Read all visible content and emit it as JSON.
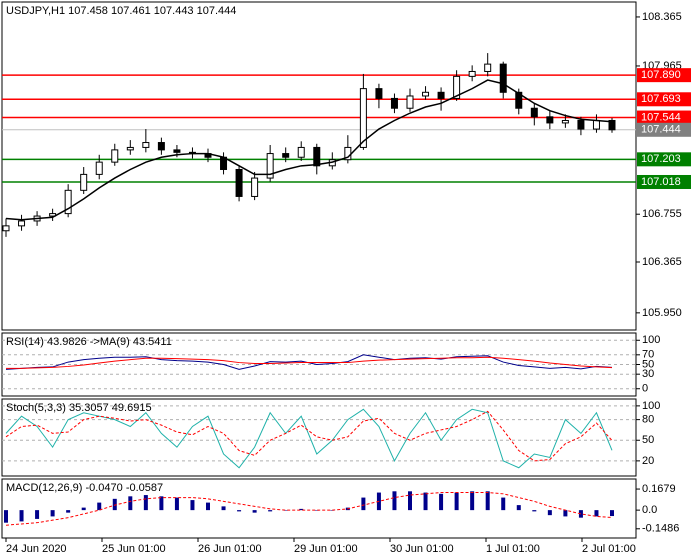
{
  "chart_data": [
    {
      "type": "candlestick",
      "title": "USDJPY,H1  107.458 107.461 107.443 107.444",
      "open": [
        106.62,
        106.66,
        106.7,
        106.74,
        106.76,
        106.95,
        107.08,
        107.18,
        107.28,
        107.3,
        107.34,
        107.28,
        107.26,
        107.25,
        107.22,
        107.12,
        106.9,
        107.05,
        107.25,
        107.22,
        107.3,
        107.15,
        107.2,
        107.3,
        107.78,
        107.7,
        107.62,
        107.72,
        107.75,
        107.7,
        107.88,
        107.92,
        107.98,
        107.75,
        107.62,
        107.55,
        107.5,
        107.52,
        107.45,
        107.52
      ],
      "high": [
        106.72,
        106.75,
        106.78,
        106.8,
        107.0,
        107.14,
        107.24,
        107.33,
        107.36,
        107.45,
        107.38,
        107.32,
        107.3,
        107.29,
        107.26,
        107.15,
        107.1,
        107.32,
        107.3,
        107.35,
        107.33,
        107.26,
        107.4,
        107.9,
        107.82,
        107.74,
        107.78,
        107.8,
        107.79,
        107.93,
        107.97,
        108.07,
        108.0,
        107.78,
        107.66,
        107.6,
        107.57,
        107.55,
        107.57,
        107.54
      ],
      "low": [
        106.57,
        106.62,
        106.66,
        106.7,
        106.73,
        106.92,
        107.04,
        107.15,
        107.24,
        107.26,
        107.24,
        107.22,
        107.21,
        107.18,
        107.08,
        106.86,
        106.87,
        107.02,
        107.18,
        107.19,
        107.08,
        107.12,
        107.17,
        107.28,
        107.62,
        107.58,
        107.59,
        107.69,
        107.6,
        107.68,
        107.84,
        107.88,
        107.7,
        107.57,
        107.48,
        107.45,
        107.46,
        107.4,
        107.42,
        107.42
      ],
      "close": [
        106.66,
        106.7,
        106.74,
        106.76,
        106.95,
        107.08,
        107.18,
        107.28,
        107.3,
        107.34,
        107.28,
        107.26,
        107.25,
        107.22,
        107.12,
        106.9,
        107.05,
        107.25,
        107.22,
        107.3,
        107.15,
        107.2,
        107.3,
        107.78,
        107.7,
        107.62,
        107.72,
        107.75,
        107.7,
        107.88,
        107.92,
        107.98,
        107.75,
        107.62,
        107.55,
        107.5,
        107.52,
        107.45,
        107.52,
        107.444
      ],
      "up_color": "#ffffff",
      "down_color": "#000000",
      "ma": {
        "color": "#000000",
        "values": [
          106.72,
          106.71,
          106.72,
          106.73,
          106.8,
          106.88,
          106.97,
          107.05,
          107.12,
          107.18,
          107.22,
          107.24,
          107.25,
          107.25,
          107.22,
          107.15,
          107.08,
          107.08,
          107.12,
          107.15,
          107.16,
          107.18,
          107.22,
          107.35,
          107.45,
          107.52,
          107.58,
          107.63,
          107.66,
          107.72,
          107.78,
          107.85,
          107.82,
          107.74,
          107.66,
          107.6,
          107.56,
          107.53,
          107.52,
          107.51
        ]
      },
      "levels": [
        {
          "value": 107.89,
          "label": "107.890",
          "color": "#ff0000"
        },
        {
          "value": 107.693,
          "label": "107.693",
          "color": "#ff0000"
        },
        {
          "value": 107.544,
          "label": "107.544",
          "color": "#ff0000"
        },
        {
          "value": 107.203,
          "label": "107.203",
          "color": "#008000"
        },
        {
          "value": 107.018,
          "label": "107.018",
          "color": "#008000"
        }
      ],
      "current": {
        "value": 107.444,
        "label": "107.444",
        "color": "#808080"
      },
      "ylim": [
        105.81,
        108.487
      ],
      "yticks": [
        108.365,
        107.965,
        106.755,
        106.365,
        {
          "value": 105.95,
          "label": "105.950"
        }
      ],
      "time_labels": [
        "24 Jun 2020",
        "25 Jun 01:00",
        "26 Jun 01:00",
        "29 Jun 01:00",
        "30 Jun 01:00",
        "1 Jul 01:00",
        "2 Jul 01:00"
      ]
    },
    {
      "type": "line",
      "title": "RSI(14) 43.9826  ->MA(9) 43.5411",
      "series": [
        {
          "color": "#00008b",
          "values": [
            40,
            42,
            44,
            45,
            55,
            60,
            63,
            65,
            65,
            66,
            60,
            58,
            57,
            55,
            50,
            40,
            47,
            56,
            55,
            57,
            50,
            52,
            56,
            70,
            65,
            60,
            63,
            64,
            61,
            66,
            67,
            68,
            55,
            48,
            45,
            42,
            44,
            41,
            46,
            43.98
          ]
        },
        {
          "color": "#ff0000",
          "values": [
            42,
            42,
            43,
            44,
            46,
            49,
            53,
            57,
            60,
            63,
            63,
            62,
            61,
            60,
            58,
            54,
            52,
            52,
            53,
            54,
            54,
            54,
            54,
            57,
            59,
            60,
            61,
            62,
            63,
            64,
            64,
            65,
            63,
            60,
            57,
            53,
            50,
            47,
            45,
            43.54
          ]
        }
      ],
      "ylim": [
        -15,
        115
      ],
      "yticks": [
        100,
        70,
        50,
        30,
        0
      ],
      "grid": true
    },
    {
      "type": "line",
      "title": "Stoch(5,3,3) 35.3057 49.6915",
      "series": [
        {
          "color": "#20b2aa",
          "values": [
            60,
            85,
            70,
            40,
            80,
            90,
            85,
            80,
            70,
            90,
            60,
            40,
            70,
            85,
            30,
            10,
            40,
            90,
            60,
            85,
            30,
            50,
            80,
            95,
            70,
            20,
            60,
            90,
            50,
            80,
            95,
            90,
            20,
            10,
            30,
            25,
            80,
            60,
            90,
            35.31
          ]
        },
        {
          "color": "#ff0000",
          "dashed": true,
          "values": [
            55,
            70,
            72,
            60,
            62,
            80,
            85,
            82,
            78,
            80,
            72,
            62,
            58,
            70,
            60,
            35,
            28,
            50,
            60,
            72,
            55,
            50,
            55,
            78,
            82,
            60,
            50,
            60,
            65,
            70,
            80,
            92,
            65,
            35,
            20,
            22,
            45,
            55,
            75,
            49.69
          ]
        }
      ],
      "ylim": [
        -2,
        110
      ],
      "yticks": [
        100,
        80,
        50,
        20
      ],
      "grid": true
    },
    {
      "type": "macd",
      "title": "MACD(12,26,9) -0.0470 -0.0587",
      "series": [
        {
          "color": "#00008b",
          "values": [
            -0.1,
            -0.09,
            -0.07,
            -0.05,
            -0.02,
            0.02,
            0.06,
            0.09,
            0.11,
            0.12,
            0.11,
            0.1,
            0.08,
            0.06,
            0.03,
            -0.01,
            -0.02,
            -0.01,
            0.0,
            0.01,
            0.0,
            0.0,
            0.02,
            0.1,
            0.14,
            0.15,
            0.15,
            0.14,
            0.13,
            0.14,
            0.15,
            0.15,
            0.1,
            0.04,
            -0.01,
            -0.04,
            -0.05,
            -0.06,
            -0.05,
            -0.047
          ]
        },
        {
          "color": "#ff0000",
          "dashed": true,
          "values": [
            -0.12,
            -0.11,
            -0.1,
            -0.08,
            -0.06,
            -0.03,
            0.0,
            0.04,
            0.07,
            0.09,
            0.1,
            0.1,
            0.1,
            0.09,
            0.07,
            0.05,
            0.03,
            0.01,
            0.0,
            0.0,
            0.0,
            0.0,
            0.01,
            0.04,
            0.07,
            0.1,
            0.12,
            0.13,
            0.14,
            0.14,
            0.14,
            0.14,
            0.13,
            0.1,
            0.07,
            0.03,
            0.0,
            -0.03,
            -0.05,
            -0.0587
          ]
        }
      ],
      "ylim": [
        -0.222,
        0.248
      ],
      "yticks": [
        0.1679,
        {
          "value": 0,
          "label": "0.0"
        },
        -0.1486
      ]
    }
  ]
}
